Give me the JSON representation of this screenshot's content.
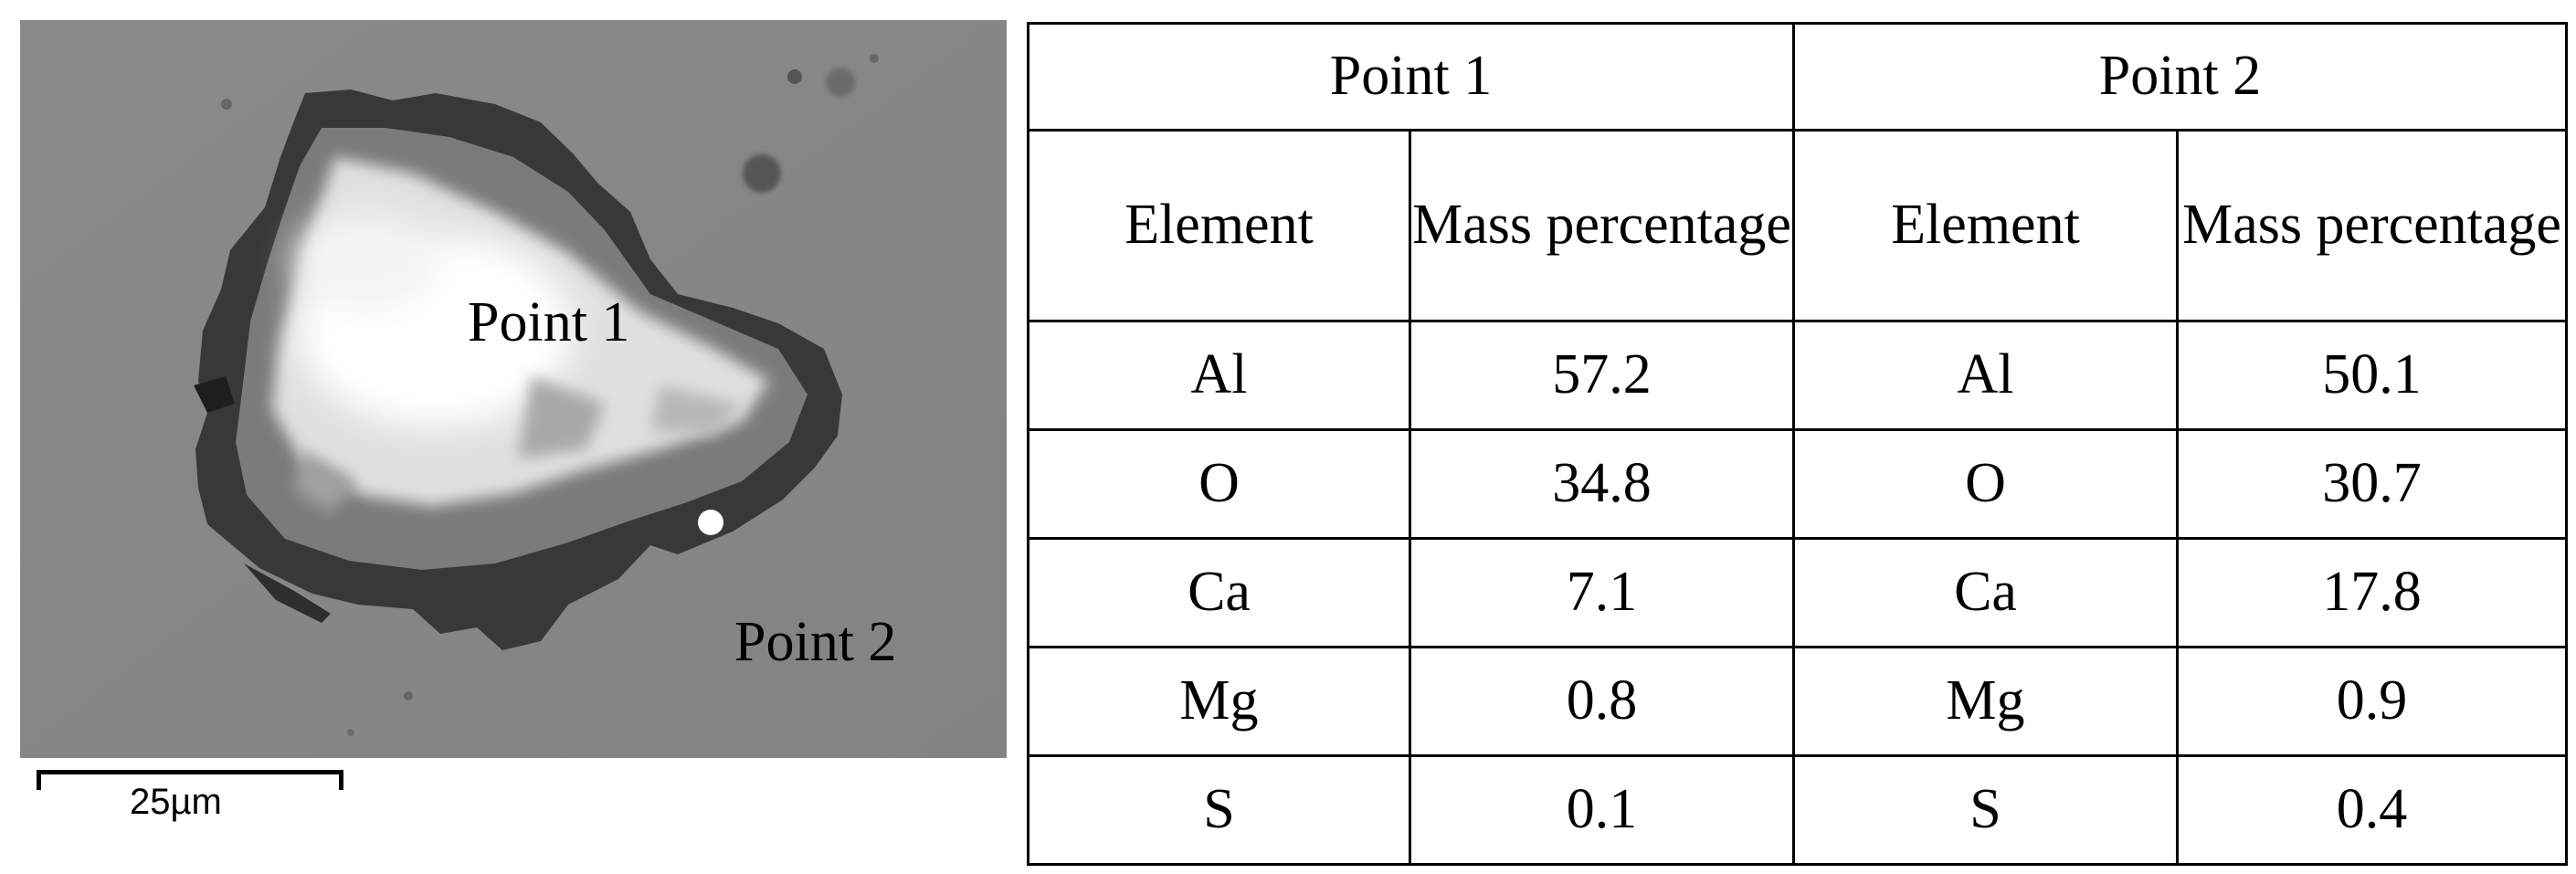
{
  "micrograph": {
    "point1_label": "Point 1",
    "point2_label": "Point 2",
    "scale_bar_label": "25µm"
  },
  "table": {
    "point1_header": "Point 1",
    "point2_header": "Point 2",
    "element_header": "Element",
    "mass_header": "Mass percentage",
    "rows": [
      {
        "p1_element": "Al",
        "p1_value": "57.2",
        "p2_element": "Al",
        "p2_value": "50.1"
      },
      {
        "p1_element": "O",
        "p1_value": "34.8",
        "p2_element": "O",
        "p2_value": "30.7"
      },
      {
        "p1_element": "Ca",
        "p1_value": "7.1",
        "p2_element": "Ca",
        "p2_value": "17.8"
      },
      {
        "p1_element": "Mg",
        "p1_value": "0.8",
        "p2_element": "Mg",
        "p2_value": "0.9"
      },
      {
        "p1_element": "S",
        "p1_value": "0.1",
        "p2_element": "S",
        "p2_value": "0.4"
      }
    ]
  }
}
